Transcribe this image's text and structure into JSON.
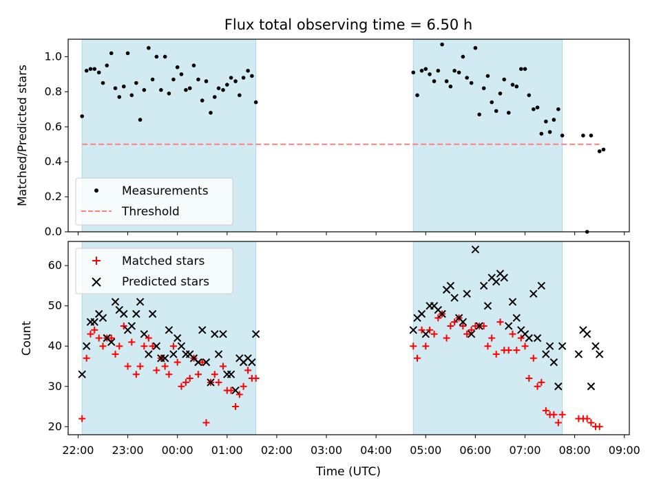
{
  "title": "Flux total observing time = 6.50 h",
  "colors": {
    "band": "#add8e6",
    "measurement": "#000000",
    "threshold": "#ff7f7f",
    "matched": "#ff0000",
    "predicted": "#000000"
  },
  "chart_data": [
    {
      "type": "scatter",
      "ylabel": "Matched/Predicted stars",
      "xlim": [
        21.8,
        33.1
      ],
      "ylim": [
        0,
        1.1
      ],
      "yticks": [
        0,
        0.2,
        0.4,
        0.6,
        0.8,
        1.0
      ],
      "ytick_labels": [
        "0.0",
        "0.2",
        "0.4",
        "0.6",
        "0.8",
        "1.0"
      ],
      "shaded_intervals": [
        [
          22.08,
          25.58
        ],
        [
          28.75,
          31.75
        ]
      ],
      "grid": false,
      "legend_position": "lower-left",
      "series": [
        {
          "name": "Measurements",
          "marker": "dot",
          "x": [
            22.08,
            22.17,
            22.25,
            22.33,
            22.42,
            22.5,
            22.58,
            22.67,
            22.75,
            22.83,
            22.92,
            23.0,
            23.08,
            23.17,
            23.25,
            23.33,
            23.42,
            23.5,
            23.58,
            23.67,
            23.75,
            23.83,
            23.92,
            24.0,
            24.08,
            24.17,
            24.25,
            24.33,
            24.42,
            24.5,
            24.58,
            24.67,
            24.75,
            24.83,
            24.92,
            25.0,
            25.08,
            25.17,
            25.25,
            25.33,
            25.42,
            25.5,
            25.58,
            28.75,
            28.83,
            28.92,
            29.0,
            29.08,
            29.17,
            29.25,
            29.33,
            29.42,
            29.5,
            29.58,
            29.67,
            29.75,
            29.83,
            29.92,
            30.0,
            30.08,
            30.17,
            30.25,
            30.33,
            30.42,
            30.5,
            30.58,
            30.67,
            30.75,
            30.83,
            30.92,
            31.0,
            31.08,
            31.17,
            31.25,
            31.33,
            31.42,
            31.5,
            31.58,
            31.67,
            31.75,
            32.17,
            32.25,
            32.33,
            32.5,
            32.58
          ],
          "y": [
            0.66,
            0.92,
            0.93,
            0.93,
            0.91,
            0.85,
            0.95,
            1.02,
            0.82,
            0.77,
            0.83,
            1.02,
            0.78,
            0.85,
            0.64,
            0.81,
            1.05,
            0.87,
            1.0,
            0.81,
            1.0,
            0.79,
            0.87,
            0.94,
            0.9,
            0.81,
            0.82,
            0.95,
            0.87,
            0.75,
            0.86,
            0.68,
            0.77,
            0.82,
            0.81,
            0.84,
            0.88,
            0.86,
            0.78,
            0.88,
            0.92,
            0.89,
            0.74,
            0.91,
            0.78,
            0.92,
            0.93,
            0.9,
            0.86,
            0.92,
            1.07,
            0.86,
            0.83,
            0.92,
            0.91,
            1.0,
            0.88,
            0.85,
            1.05,
            0.67,
            0.82,
            0.89,
            0.74,
            0.69,
            0.79,
            0.87,
            0.68,
            0.84,
            0.83,
            0.93,
            0.93,
            0.78,
            0.7,
            0.71,
            0.56,
            0.63,
            0.57,
            0.64,
            0.7,
            0.55,
            0.55,
            0.0,
            0.55,
            0.46,
            0.47
          ]
        },
        {
          "name": "Threshold",
          "style": "dashed",
          "x": [
            22.08,
            32.5
          ],
          "y": [
            0.5,
            0.5
          ]
        }
      ]
    },
    {
      "type": "scatter",
      "xlabel": "Time (UTC)",
      "ylabel": "Count",
      "xlim": [
        21.8,
        33.1
      ],
      "ylim": [
        18,
        66
      ],
      "xticks": [
        22,
        23,
        24,
        25,
        26,
        27,
        28,
        29,
        30,
        31,
        32,
        33
      ],
      "xtick_labels": [
        "22:00",
        "23:00",
        "00:00",
        "01:00",
        "02:00",
        "03:00",
        "04:00",
        "05:00",
        "06:00",
        "07:00",
        "08:00",
        "09:00"
      ],
      "yticks": [
        20,
        30,
        40,
        50,
        60
      ],
      "ytick_labels": [
        "20",
        "30",
        "40",
        "50",
        "60"
      ],
      "shaded_intervals": [
        [
          22.08,
          25.58
        ],
        [
          28.75,
          31.75
        ]
      ],
      "grid": false,
      "legend_position": "upper-left",
      "series": [
        {
          "name": "Matched stars",
          "marker": "plus",
          "x": [
            22.08,
            22.17,
            22.25,
            22.33,
            22.42,
            22.5,
            22.58,
            22.67,
            22.75,
            22.83,
            22.92,
            23.0,
            23.08,
            23.17,
            23.25,
            23.33,
            23.42,
            23.5,
            23.58,
            23.67,
            23.75,
            23.83,
            23.92,
            24.0,
            24.08,
            24.17,
            24.25,
            24.33,
            24.42,
            24.5,
            24.58,
            24.67,
            24.75,
            24.83,
            24.92,
            25.0,
            25.08,
            25.17,
            25.25,
            25.33,
            25.42,
            25.5,
            25.58,
            28.75,
            28.83,
            28.92,
            29.0,
            29.08,
            29.17,
            29.25,
            29.33,
            29.42,
            29.5,
            29.58,
            29.67,
            29.75,
            29.83,
            29.92,
            30.0,
            30.08,
            30.17,
            30.25,
            30.33,
            30.42,
            30.5,
            30.58,
            30.67,
            30.75,
            30.83,
            30.92,
            31.0,
            31.08,
            31.17,
            31.25,
            31.33,
            31.42,
            31.5,
            31.58,
            31.67,
            31.75,
            32.08,
            32.17,
            32.25,
            32.33,
            32.42,
            32.5
          ],
          "y": [
            22,
            37,
            43,
            44,
            42,
            40,
            42,
            42,
            38,
            40,
            45,
            35,
            41,
            33,
            35,
            40,
            42,
            40,
            34,
            37,
            35,
            33,
            40,
            36,
            30,
            31,
            32,
            37,
            33,
            36,
            21,
            31,
            33,
            31,
            35,
            29,
            29,
            25,
            28,
            30,
            34,
            32,
            32,
            40,
            37,
            44,
            40,
            44,
            43,
            47,
            48,
            42,
            45,
            46,
            47,
            45,
            43,
            44,
            45,
            45,
            45,
            40,
            42,
            38,
            46,
            39,
            39,
            43,
            39,
            42,
            40,
            32,
            37,
            30,
            31,
            24,
            23,
            23,
            21,
            23,
            22,
            22,
            22,
            21,
            20,
            20
          ]
        },
        {
          "name": "Predicted stars",
          "marker": "x",
          "x": [
            22.08,
            22.17,
            22.25,
            22.33,
            22.42,
            22.5,
            22.58,
            22.67,
            22.75,
            22.83,
            22.92,
            23.0,
            23.08,
            23.17,
            23.25,
            23.33,
            23.42,
            23.5,
            23.58,
            23.67,
            23.75,
            23.83,
            23.92,
            24.0,
            24.08,
            24.17,
            24.25,
            24.33,
            24.42,
            24.5,
            24.58,
            24.67,
            24.75,
            24.83,
            24.92,
            25.0,
            25.08,
            25.17,
            25.25,
            25.33,
            25.42,
            25.5,
            25.58,
            28.75,
            28.83,
            28.92,
            29.0,
            29.08,
            29.17,
            29.25,
            29.33,
            29.42,
            29.5,
            29.58,
            29.67,
            29.75,
            29.83,
            29.92,
            30.0,
            30.08,
            30.17,
            30.25,
            30.33,
            30.42,
            30.5,
            30.58,
            30.67,
            30.75,
            30.83,
            30.92,
            31.0,
            31.08,
            31.17,
            31.25,
            31.33,
            31.42,
            31.5,
            31.58,
            31.67,
            31.75,
            32.08,
            32.17,
            32.25,
            32.33,
            32.42,
            32.5
          ],
          "y": [
            33,
            40,
            46,
            46,
            48,
            47,
            42,
            41,
            51,
            49,
            48,
            44,
            45,
            48,
            51,
            43,
            38,
            48,
            40,
            37,
            37,
            44,
            38,
            42,
            40,
            38,
            38,
            37,
            36,
            44,
            36,
            31,
            43,
            38,
            43,
            33,
            33,
            29,
            37,
            36,
            37,
            36,
            43,
            44,
            47,
            48,
            43,
            50,
            50,
            49,
            48,
            54,
            55,
            52,
            47,
            46,
            53,
            43,
            64,
            45,
            55,
            50,
            57,
            56,
            58,
            57,
            45,
            51,
            47,
            44,
            43,
            42,
            53,
            42,
            55,
            38,
            40,
            36,
            30,
            40,
            38,
            44,
            43,
            30,
            40,
            38
          ]
        }
      ]
    }
  ]
}
